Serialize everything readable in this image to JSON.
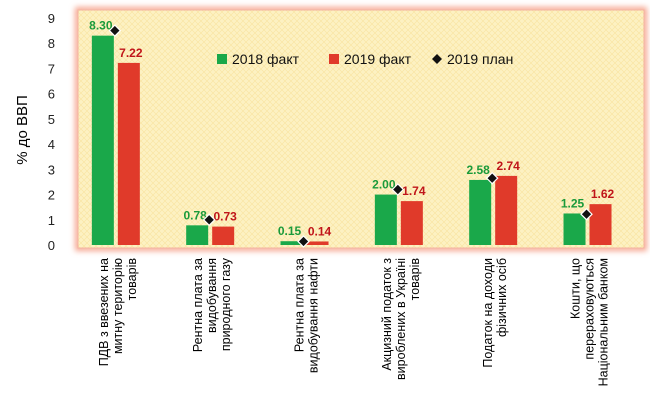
{
  "chart_data": {
    "type": "bar",
    "ylabel": "% до ВВП",
    "ylim": [
      0,
      9
    ],
    "yticks": [
      0,
      1,
      2,
      3,
      4,
      5,
      6,
      7,
      8,
      9
    ],
    "grid": false,
    "legend_placement": "top-center",
    "categories": [
      [
        "ПДВ з ввезених на",
        "митну територію",
        "товарів"
      ],
      [
        "Рентна плата за",
        "видобування",
        "природного газу"
      ],
      [
        "Рентна плата за",
        "видобування нафти"
      ],
      [
        "Акцизний податок з",
        "вироблених в Україні",
        "товарів"
      ],
      [
        "Податок на доходи",
        "фізичних осіб"
      ],
      [
        "Кошти, що",
        "перераховуються",
        "Національним банком"
      ]
    ],
    "series": [
      {
        "name": "2018 факт",
        "type": "bar",
        "color": "#1aa84a",
        "label_color": "#1a9a3a",
        "values": [
          8.3,
          0.78,
          0.15,
          2.0,
          2.58,
          1.25
        ],
        "labels": [
          "8.30",
          "0.78",
          "0.15",
          "2.00",
          "2.58",
          "1.25"
        ]
      },
      {
        "name": "2019 факт",
        "type": "bar",
        "color": "#e03a2a",
        "label_color": "#c0151a",
        "values": [
          7.22,
          0.73,
          0.14,
          1.74,
          2.74,
          1.62
        ],
        "labels": [
          "7.22",
          "0.73",
          "0.14",
          "1.74",
          "2.74",
          "1.62"
        ]
      },
      {
        "name": "2019 план",
        "type": "marker",
        "color": "#111111",
        "values": [
          8.5,
          1.0,
          0.14,
          2.2,
          2.65,
          1.22
        ]
      }
    ],
    "background_color": "#fdf1c2",
    "border_color": "#f5a38e"
  }
}
